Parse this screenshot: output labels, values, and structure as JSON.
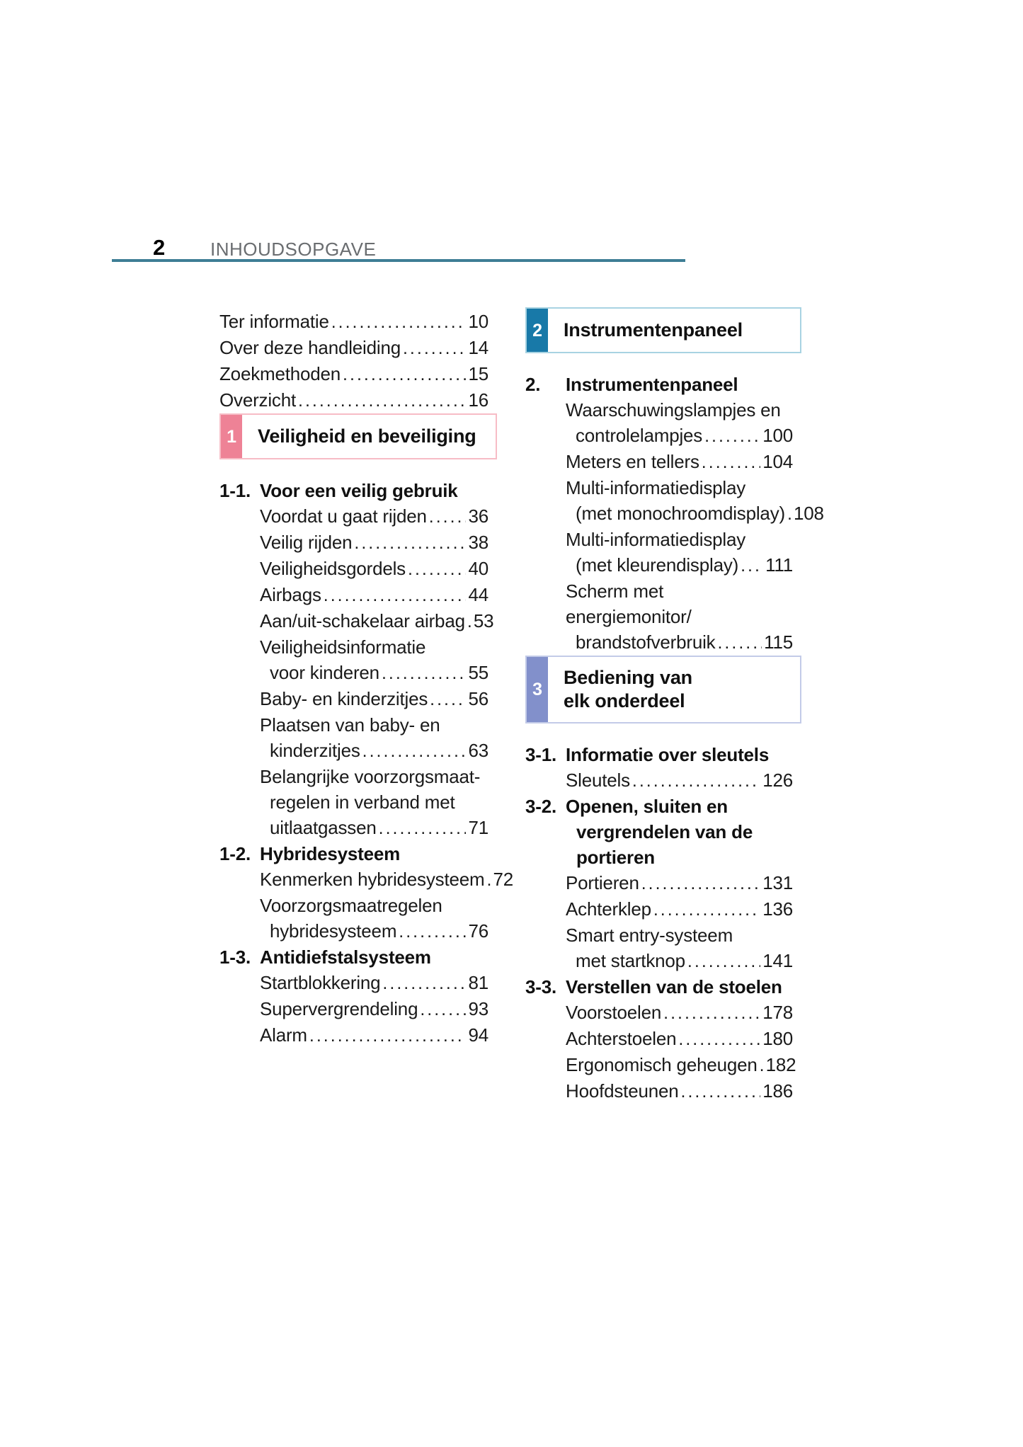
{
  "page": {
    "number": "2",
    "header_title": "INHOUDSOPGAVE"
  },
  "colors": {
    "header_rule": "#3e7e95",
    "header_text": "#6a6d70",
    "body_text": "#1a1a1a"
  },
  "left_column": {
    "blocks": [
      {
        "type": "entries",
        "items": [
          {
            "lines": [
              "Ter informatie"
            ],
            "page": "10"
          },
          {
            "lines": [
              "Over deze handleiding"
            ],
            "page": "14"
          },
          {
            "lines": [
              "Zoekmethoden"
            ],
            "page": "15"
          },
          {
            "lines": [
              "Overzicht"
            ],
            "page": "16"
          }
        ]
      },
      {
        "type": "section_box",
        "number": "1",
        "accent": "#ee8296",
        "border": "#f7bcc6",
        "title_lines": [
          "Veiligheid en beveiliging"
        ]
      },
      {
        "type": "group",
        "number": "1-1.",
        "title_lines": [
          "Voor een veilig gebruik"
        ],
        "entries": [
          {
            "lines": [
              "Voordat u gaat rijden"
            ],
            "page": "36"
          },
          {
            "lines": [
              "Veilig rijden"
            ],
            "page": "38"
          },
          {
            "lines": [
              "Veiligheidsgordels"
            ],
            "page": "40"
          },
          {
            "lines": [
              "Airbags"
            ],
            "page": "44"
          },
          {
            "lines": [
              "Aan/uit-schakelaar airbag"
            ],
            "page": "53"
          },
          {
            "lines": [
              "Veiligheidsinformatie",
              "voor kinderen"
            ],
            "page": "55"
          },
          {
            "lines": [
              "Baby- en kinderzitjes"
            ],
            "page": "56"
          },
          {
            "lines": [
              "Plaatsen van baby- en",
              "kinderzitjes"
            ],
            "page": "63"
          },
          {
            "lines": [
              "Belangrijke voorzorgsmaat-",
              "regelen in verband met",
              "uitlaatgassen"
            ],
            "page": "71"
          }
        ]
      },
      {
        "type": "group",
        "number": "1-2.",
        "title_lines": [
          "Hybridesysteem"
        ],
        "entries": [
          {
            "lines": [
              "Kenmerken hybridesysteem"
            ],
            "page": "72"
          },
          {
            "lines": [
              "Voorzorgsmaatregelen",
              "hybridesysteem"
            ],
            "page": "76"
          }
        ]
      },
      {
        "type": "group",
        "number": "1-3.",
        "title_lines": [
          "Antidiefstalsysteem"
        ],
        "entries": [
          {
            "lines": [
              "Startblokkering"
            ],
            "page": "81"
          },
          {
            "lines": [
              "Supervergrendeling"
            ],
            "page": "93"
          },
          {
            "lines": [
              "Alarm"
            ],
            "page": "94"
          }
        ]
      }
    ]
  },
  "right_column": {
    "blocks": [
      {
        "type": "section_box",
        "number": "2",
        "accent": "#1879a8",
        "border": "#a8d3e2",
        "title_lines": [
          "Instrumentenpaneel"
        ]
      },
      {
        "type": "group",
        "number": "2.",
        "title_lines": [
          "Instrumentenpaneel"
        ],
        "entries": [
          {
            "lines": [
              "Waarschuwingslampjes en",
              "controlelampjes"
            ],
            "page": "100"
          },
          {
            "lines": [
              "Meters en tellers"
            ],
            "page": "104"
          },
          {
            "lines": [
              "Multi-informatiedisplay",
              "(met monochroomdisplay)"
            ],
            "page": "108"
          },
          {
            "lines": [
              "Multi-informatiedisplay",
              "(met kleurendisplay)"
            ],
            "page": "111"
          },
          {
            "lines": [
              "Scherm met energiemonitor/",
              "brandstofverbruik"
            ],
            "page": "115"
          }
        ]
      },
      {
        "type": "section_box",
        "number": "3",
        "accent": "#8290cb",
        "border": "#c3cbe8",
        "title_lines": [
          "Bediening van",
          "elk onderdeel"
        ]
      },
      {
        "type": "group",
        "number": "3-1.",
        "title_lines": [
          "Informatie over sleutels"
        ],
        "entries": [
          {
            "lines": [
              "Sleutels"
            ],
            "page": "126"
          }
        ]
      },
      {
        "type": "group",
        "number": "3-2.",
        "title_lines": [
          "Openen, sluiten en",
          "vergrendelen van de",
          "portieren"
        ],
        "entries": [
          {
            "lines": [
              "Portieren"
            ],
            "page": "131"
          },
          {
            "lines": [
              "Achterklep"
            ],
            "page": "136"
          },
          {
            "lines": [
              "Smart entry-systeem",
              "met startknop"
            ],
            "page": "141"
          }
        ]
      },
      {
        "type": "group",
        "number": "3-3.",
        "title_lines": [
          "Verstellen van de stoelen"
        ],
        "entries": [
          {
            "lines": [
              "Voorstoelen"
            ],
            "page": "178"
          },
          {
            "lines": [
              "Achterstoelen"
            ],
            "page": "180"
          },
          {
            "lines": [
              "Ergonomisch geheugen"
            ],
            "page": "182"
          },
          {
            "lines": [
              "Hoofdsteunen"
            ],
            "page": "186"
          }
        ]
      }
    ]
  }
}
